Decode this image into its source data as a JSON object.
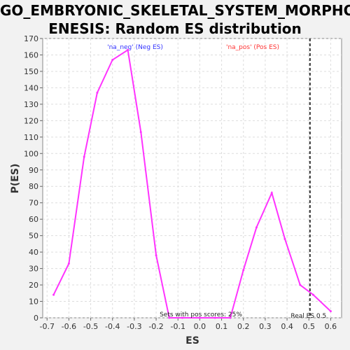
{
  "chart_data": {
    "type": "line",
    "title_line1": "GO_EMBRYONIC_SKELETAL_SYSTEM_MORPHOG",
    "title_line2": "ENESIS: Random ES distribution",
    "xlabel": "ES",
    "ylabel": "P(ES)",
    "xlim": [
      -0.72,
      0.65
    ],
    "ylim": [
      0,
      170
    ],
    "xticks": [
      -0.7,
      -0.6,
      -0.5,
      -0.4,
      -0.3,
      -0.2,
      -0.1,
      0.0,
      0.1,
      0.2,
      0.3,
      0.4,
      0.5,
      0.6
    ],
    "yticks": [
      0,
      10,
      20,
      30,
      40,
      50,
      60,
      70,
      80,
      90,
      100,
      110,
      120,
      130,
      140,
      150,
      160,
      170
    ],
    "grid": true,
    "series_color": "#ff33ff",
    "series": [
      {
        "x": [
          -0.67,
          -0.6,
          -0.53,
          -0.47,
          -0.4,
          -0.33,
          -0.27,
          -0.2,
          -0.14,
          -0.08,
          0.0,
          0.07,
          0.14,
          0.2,
          0.26,
          0.33,
          0.39,
          0.46,
          0.52,
          0.6
        ],
        "values": [
          14,
          33,
          98,
          137,
          157,
          163,
          113,
          38,
          0,
          0,
          0,
          0,
          0,
          29,
          55,
          76,
          48,
          20,
          14,
          4
        ]
      }
    ],
    "real_es": {
      "x": 0.505,
      "label": "Real ES 0.5",
      "color": "#333333"
    },
    "legend": [
      {
        "label": "'na_neg' (Neg ES)",
        "color": "#3333ff"
      },
      {
        "label": "'na_pos' (Pos ES)",
        "color": "#ff3333"
      }
    ],
    "annotation": "Sets with pos scores: 25%"
  }
}
